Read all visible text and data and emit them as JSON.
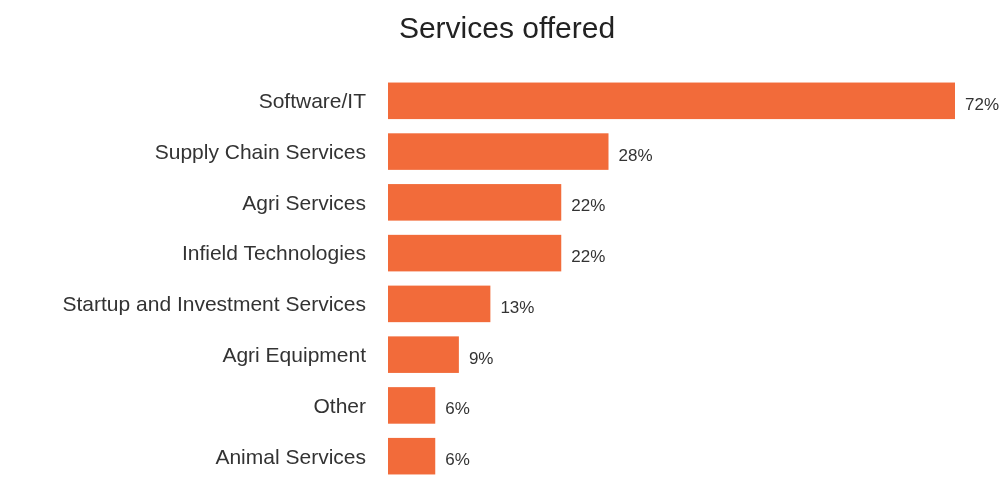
{
  "chart_data": {
    "type": "bar",
    "orientation": "horizontal",
    "title": "Services offered",
    "categories": [
      "Software/IT",
      "Supply Chain Services",
      "Agri Services",
      "Infield Technologies",
      "Startup and Investment Services",
      "Agri Equipment",
      "Other",
      "Animal Services"
    ],
    "values": [
      72,
      28,
      22,
      22,
      13,
      9,
      6,
      6
    ],
    "value_labels": [
      "72%",
      "28%",
      "22%",
      "22%",
      "13%",
      "9%",
      "6%",
      "6%"
    ],
    "color": "#f26b3a"
  }
}
